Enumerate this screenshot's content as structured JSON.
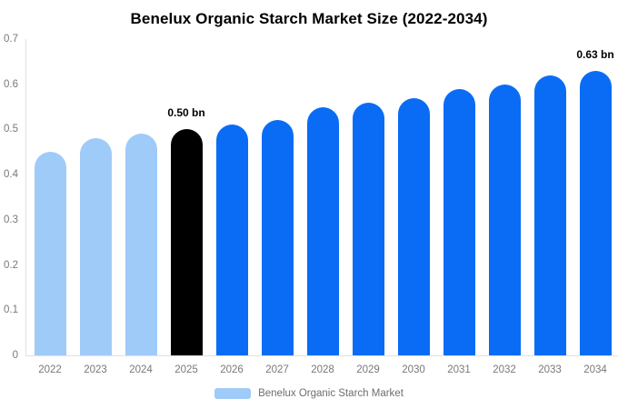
{
  "chart_data": {
    "type": "bar",
    "title": "Benelux Organic Starch Market Size (2022-2034)",
    "series_name": "Benelux Organic Starch Market",
    "categories": [
      "2022",
      "2023",
      "2024",
      "2025",
      "2026",
      "2027",
      "2028",
      "2029",
      "2030",
      "2031",
      "2032",
      "2033",
      "2034"
    ],
    "values": [
      0.45,
      0.48,
      0.49,
      0.5,
      0.51,
      0.52,
      0.55,
      0.56,
      0.57,
      0.59,
      0.6,
      0.62,
      0.63
    ],
    "unit": "bn",
    "ylim": [
      0,
      0.7
    ],
    "ytick_labels": [
      "0",
      "0.1",
      "0.2",
      "0.3",
      "0.4",
      "0.5",
      "0.6",
      "0.7"
    ],
    "grid": "off",
    "legend_position": "bottom-center",
    "bar_colors": [
      "#9fcbf8",
      "#9fcbf8",
      "#9fcbf8",
      "#000000",
      "#0a6cf5",
      "#0a6cf5",
      "#0a6cf5",
      "#0a6cf5",
      "#0a6cf5",
      "#0a6cf5",
      "#0a6cf5",
      "#0a6cf5",
      "#0a6cf5"
    ],
    "annotations": [
      {
        "index": 3,
        "category": "2025",
        "label": "0.50 bn"
      },
      {
        "index": 12,
        "category": "2034",
        "label": "0.63 bn"
      }
    ]
  },
  "legend": {
    "label": "Benelux Organic Starch Market",
    "swatch_color": "#9fcbf8"
  },
  "colors": {
    "bar_past": "#9fcbf8",
    "bar_highlight": "#000000",
    "bar_forecast": "#0a6cf5",
    "axis_text": "#787878",
    "axis_line": "#e0e0e0",
    "annotation_text": "#000000",
    "title_text": "#000000",
    "background": "#ffffff"
  }
}
